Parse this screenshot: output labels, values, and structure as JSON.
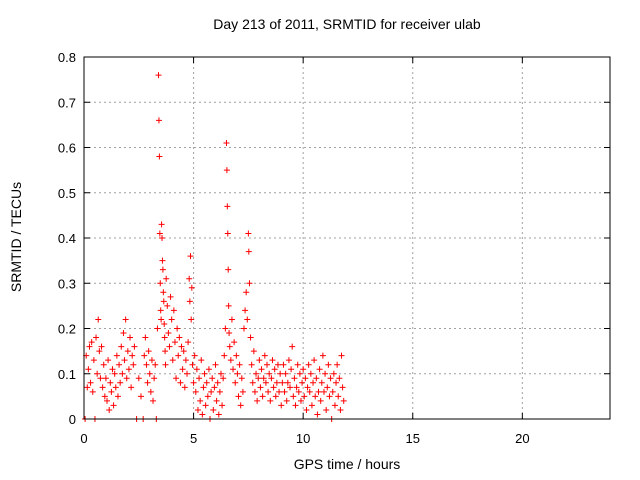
{
  "chart_data": {
    "type": "scatter",
    "title": "Day 213 of 2011, SRMTID for receiver ulab",
    "xlabel": "GPS time / hours",
    "ylabel": "SRMTID / TECUs",
    "xlim": [
      0,
      24
    ],
    "ylim": [
      0,
      0.8
    ],
    "x_ticks": [
      "0",
      "5",
      "10",
      "15",
      "20"
    ],
    "y_ticks": [
      "0",
      "0.1",
      "0.2",
      "0.3",
      "0.4",
      "0.5",
      "0.6",
      "0.7",
      "0.8"
    ],
    "grid": true,
    "marker": "+",
    "series": [
      {
        "color": "#ff0000",
        "points": [
          [
            0.05,
            0.0
          ],
          [
            0.1,
            0.14
          ],
          [
            0.15,
            0.07
          ],
          [
            0.2,
            0.11
          ],
          [
            0.25,
            0.16
          ],
          [
            0.3,
            0.08
          ],
          [
            0.35,
            0.17
          ],
          [
            0.4,
            0.06
          ],
          [
            0.45,
            0.13
          ],
          [
            0.5,
            0.0
          ],
          [
            0.55,
            0.18
          ],
          [
            0.6,
            0.1
          ],
          [
            0.65,
            0.22
          ],
          [
            0.7,
            0.15
          ],
          [
            0.75,
            0.09
          ],
          [
            0.8,
            0.16
          ],
          [
            0.85,
            0.07
          ],
          [
            0.9,
            0.12
          ],
          [
            0.95,
            0.05
          ],
          [
            1.0,
            0.09
          ],
          [
            1.05,
            0.04
          ],
          [
            1.1,
            0.13
          ],
          [
            1.15,
            0.02
          ],
          [
            1.2,
            0.08
          ],
          [
            1.25,
            0.06
          ],
          [
            1.3,
            0.11
          ],
          [
            1.35,
            0.03
          ],
          [
            1.4,
            0.1
          ],
          [
            1.45,
            0.07
          ],
          [
            1.5,
            0.14
          ],
          [
            1.55,
            0.05
          ],
          [
            1.6,
            0.12
          ],
          [
            1.65,
            0.08
          ],
          [
            1.7,
            0.16
          ],
          [
            1.75,
            0.1
          ],
          [
            1.8,
            0.19
          ],
          [
            1.85,
            0.13
          ],
          [
            1.9,
            0.22
          ],
          [
            1.95,
            0.09
          ],
          [
            2.0,
            0.15
          ],
          [
            2.05,
            0.11
          ],
          [
            2.1,
            0.18
          ],
          [
            2.15,
            0.07
          ],
          [
            2.2,
            0.14
          ],
          [
            2.25,
            0.12
          ],
          [
            2.3,
            0.16
          ],
          [
            2.4,
            0.0
          ],
          [
            2.5,
            0.09
          ],
          [
            2.6,
            0.05
          ],
          [
            2.7,
            0.0
          ],
          [
            2.75,
            0.14
          ],
          [
            2.8,
            0.18
          ],
          [
            2.85,
            0.12
          ],
          [
            2.9,
            0.08
          ],
          [
            2.95,
            0.15
          ],
          [
            3.0,
            0.1
          ],
          [
            3.05,
            0.06
          ],
          [
            3.1,
            0.13
          ],
          [
            3.15,
            0.04
          ],
          [
            3.2,
            0.09
          ],
          [
            3.25,
            0.12
          ],
          [
            3.3,
            0.0
          ],
          [
            3.35,
            0.2
          ],
          [
            3.4,
            0.76
          ],
          [
            3.42,
            0.66
          ],
          [
            3.44,
            0.58
          ],
          [
            3.46,
            0.41
          ],
          [
            3.48,
            0.3
          ],
          [
            3.5,
            0.24
          ],
          [
            3.52,
            0.22
          ],
          [
            3.54,
            0.43
          ],
          [
            3.56,
            0.4
          ],
          [
            3.58,
            0.35
          ],
          [
            3.6,
            0.33
          ],
          [
            3.62,
            0.28
          ],
          [
            3.64,
            0.26
          ],
          [
            3.66,
            0.21
          ],
          [
            3.68,
            0.18
          ],
          [
            3.7,
            0.15
          ],
          [
            3.72,
            0.12
          ],
          [
            3.75,
            0.31
          ],
          [
            3.8,
            0.25
          ],
          [
            3.85,
            0.19
          ],
          [
            3.9,
            0.16
          ],
          [
            3.95,
            0.27
          ],
          [
            4.0,
            0.22
          ],
          [
            4.05,
            0.13
          ],
          [
            4.1,
            0.24
          ],
          [
            4.15,
            0.17
          ],
          [
            4.2,
            0.09
          ],
          [
            4.25,
            0.2
          ],
          [
            4.3,
            0.14
          ],
          [
            4.35,
            0.18
          ],
          [
            4.4,
            0.08
          ],
          [
            4.45,
            0.16
          ],
          [
            4.5,
            0.11
          ],
          [
            4.55,
            0.15
          ],
          [
            4.6,
            0.07
          ],
          [
            4.65,
            0.13
          ],
          [
            4.7,
            0.1
          ],
          [
            4.75,
            0.17
          ],
          [
            4.8,
            0.31
          ],
          [
            4.83,
            0.26
          ],
          [
            4.86,
            0.36
          ],
          [
            4.89,
            0.22
          ],
          [
            4.92,
            0.29
          ],
          [
            4.95,
            0.12
          ],
          [
            5.0,
            0.08
          ],
          [
            5.05,
            0.14
          ],
          [
            5.1,
            0.06
          ],
          [
            5.15,
            0.11
          ],
          [
            5.2,
            0.02
          ],
          [
            5.25,
            0.09
          ],
          [
            5.3,
            0.04
          ],
          [
            5.35,
            0.13
          ],
          [
            5.4,
            0.01
          ],
          [
            5.45,
            0.07
          ],
          [
            5.5,
            0.1
          ],
          [
            5.55,
            0.03
          ],
          [
            5.6,
            0.08
          ],
          [
            5.65,
            0.05
          ],
          [
            5.7,
            0.11
          ],
          [
            5.75,
            0.0
          ],
          [
            5.8,
            0.06
          ],
          [
            5.85,
            0.09
          ],
          [
            5.9,
            0.02
          ],
          [
            5.95,
            0.07
          ],
          [
            6.0,
            0.12
          ],
          [
            6.05,
            0.04
          ],
          [
            6.1,
            0.08
          ],
          [
            6.15,
            0.01
          ],
          [
            6.2,
            0.06
          ],
          [
            6.25,
            0.1
          ],
          [
            6.3,
            0.03
          ],
          [
            6.35,
            0.09
          ],
          [
            6.4,
            0.14
          ],
          [
            6.45,
            0.2
          ],
          [
            6.5,
            0.61
          ],
          [
            6.52,
            0.55
          ],
          [
            6.54,
            0.47
          ],
          [
            6.56,
            0.41
          ],
          [
            6.58,
            0.33
          ],
          [
            6.6,
            0.25
          ],
          [
            6.62,
            0.19
          ],
          [
            6.65,
            0.16
          ],
          [
            6.7,
            0.13
          ],
          [
            6.75,
            0.22
          ],
          [
            6.8,
            0.11
          ],
          [
            6.85,
            0.17
          ],
          [
            6.9,
            0.08
          ],
          [
            6.95,
            0.14
          ],
          [
            7.0,
            0.1
          ],
          [
            7.05,
            0.05
          ],
          [
            7.1,
            0.12
          ],
          [
            7.15,
            0.03
          ],
          [
            7.2,
            0.09
          ],
          [
            7.25,
            0.06
          ],
          [
            7.3,
            0.2
          ],
          [
            7.35,
            0.24
          ],
          [
            7.4,
            0.28
          ],
          [
            7.45,
            0.22
          ],
          [
            7.5,
            0.41
          ],
          [
            7.52,
            0.37
          ],
          [
            7.55,
            0.3
          ],
          [
            7.6,
            0.18
          ],
          [
            7.65,
            0.12
          ],
          [
            7.7,
            0.08
          ],
          [
            7.75,
            0.15
          ],
          [
            7.8,
            0.06
          ],
          [
            7.85,
            0.1
          ],
          [
            7.9,
            0.04
          ],
          [
            7.95,
            0.09
          ],
          [
            8.0,
            0.13
          ],
          [
            8.05,
            0.07
          ],
          [
            8.1,
            0.11
          ],
          [
            8.15,
            0.05
          ],
          [
            8.2,
            0.09
          ],
          [
            8.25,
            0.14
          ],
          [
            8.3,
            0.08
          ],
          [
            8.35,
            0.12
          ],
          [
            8.4,
            0.06
          ],
          [
            8.45,
            0.1
          ],
          [
            8.5,
            0.04
          ],
          [
            8.55,
            0.09
          ],
          [
            8.6,
            0.13
          ],
          [
            8.65,
            0.07
          ],
          [
            8.7,
            0.11
          ],
          [
            8.75,
            0.05
          ],
          [
            8.8,
            0.08
          ],
          [
            8.85,
            0.12
          ],
          [
            8.9,
            0.06
          ],
          [
            8.95,
            0.1
          ],
          [
            9.0,
            0.03
          ],
          [
            9.05,
            0.08
          ],
          [
            9.1,
            0.12
          ],
          [
            9.15,
            0.06
          ],
          [
            9.2,
            0.1
          ],
          [
            9.25,
            0.04
          ],
          [
            9.3,
            0.08
          ],
          [
            9.35,
            0.13
          ],
          [
            9.4,
            0.07
          ],
          [
            9.45,
            0.11
          ],
          [
            9.5,
            0.16
          ],
          [
            9.55,
            0.05
          ],
          [
            9.6,
            0.09
          ],
          [
            9.65,
            0.03
          ],
          [
            9.7,
            0.07
          ],
          [
            9.75,
            0.12
          ],
          [
            9.8,
            0.06
          ],
          [
            9.85,
            0.1
          ],
          [
            9.9,
            0.04
          ],
          [
            9.95,
            0.08
          ],
          [
            10.0,
            0.11
          ],
          [
            10.05,
            0.05
          ],
          [
            10.1,
            0.09
          ],
          [
            10.15,
            0.02
          ],
          [
            10.2,
            0.07
          ],
          [
            10.25,
            0.12
          ],
          [
            10.3,
            0.06
          ],
          [
            10.35,
            0.1
          ],
          [
            10.4,
            0.03
          ],
          [
            10.45,
            0.08
          ],
          [
            10.5,
            0.13
          ],
          [
            10.55,
            0.05
          ],
          [
            10.6,
            0.09
          ],
          [
            10.65,
            0.01
          ],
          [
            10.7,
            0.06
          ],
          [
            10.75,
            0.11
          ],
          [
            10.8,
            0.04
          ],
          [
            10.85,
            0.08
          ],
          [
            10.9,
            0.14
          ],
          [
            10.95,
            0.06
          ],
          [
            11.0,
            0.1
          ],
          [
            11.05,
            0.02
          ],
          [
            11.1,
            0.07
          ],
          [
            11.15,
            0.12
          ],
          [
            11.2,
            0.05
          ],
          [
            11.25,
            0.09
          ],
          [
            11.3,
            0.0
          ],
          [
            11.35,
            0.06
          ],
          [
            11.4,
            0.1
          ],
          [
            11.45,
            0.03
          ],
          [
            11.5,
            0.08
          ],
          [
            11.55,
            0.12
          ],
          [
            11.6,
            0.05
          ],
          [
            11.65,
            0.09
          ],
          [
            11.7,
            0.02
          ],
          [
            11.75,
            0.14
          ],
          [
            11.8,
            0.07
          ],
          [
            11.85,
            0.04
          ]
        ]
      }
    ]
  }
}
